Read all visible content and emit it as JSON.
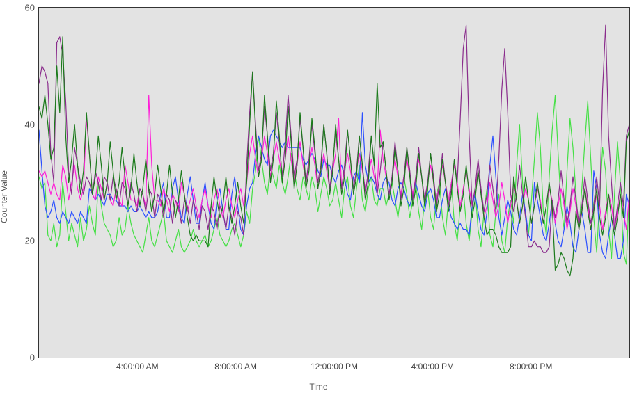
{
  "chart": {
    "type": "line",
    "xlabel": "Time",
    "ylabel": "Counter Value",
    "label_fontsize": 12,
    "background_color": "#e3e3e3",
    "page_background": "#ffffff",
    "border_color": "#333333",
    "grid_color": "#333333",
    "line_width": 1.2,
    "ylim": [
      0,
      60
    ],
    "yticks": [
      0,
      20,
      40,
      60
    ],
    "ytick_labels": [
      "0",
      "20",
      "40",
      "60"
    ],
    "xrange_hours": 24,
    "xtick_positions_hours": [
      4,
      8,
      12,
      16,
      20
    ],
    "xtick_labels": [
      "4:00:00 AM",
      "8:00:00 AM",
      "12:00:00 PM",
      "4:00:00 PM",
      "8:00:00 PM"
    ],
    "series": [
      {
        "name": "series-green-bright",
        "color": "#44e044",
        "values": [
          31,
          29,
          30,
          21,
          20,
          23,
          19,
          21,
          30,
          25,
          20,
          23,
          21,
          19,
          24,
          20,
          22,
          26,
          23,
          21,
          30,
          26,
          23,
          22,
          21,
          19,
          20,
          24,
          21,
          22,
          26,
          23,
          21,
          20,
          19,
          18,
          21,
          24,
          20,
          19,
          21,
          23,
          25,
          20,
          19,
          18,
          20,
          22,
          19,
          18,
          19,
          20,
          22,
          20,
          19,
          20,
          21,
          19,
          20,
          22,
          24,
          21,
          20,
          19,
          20,
          22,
          23,
          21,
          19,
          21,
          25,
          23,
          29,
          32,
          38,
          34,
          30,
          28,
          33,
          31,
          29,
          33,
          30,
          28,
          31,
          35,
          32,
          29,
          27,
          31,
          29,
          27,
          31,
          29,
          25,
          28,
          31,
          29,
          26,
          27,
          30,
          27,
          24,
          29,
          31,
          26,
          24,
          29,
          33,
          27,
          25,
          29,
          31,
          27,
          26,
          29,
          29,
          26,
          28,
          30,
          27,
          24,
          28,
          31,
          28,
          24,
          27,
          30,
          25,
          22,
          27,
          29,
          24,
          22,
          28,
          30,
          24,
          21,
          27,
          30,
          23,
          20,
          26,
          29,
          23,
          20,
          25,
          29,
          22,
          19,
          25,
          29,
          21,
          19,
          25,
          28,
          20,
          18,
          24,
          27,
          23,
          33,
          40,
          30,
          24,
          21,
          27,
          34,
          42,
          36,
          25,
          21,
          31,
          39,
          45,
          35,
          26,
          22,
          32,
          41,
          36,
          28,
          22,
          29,
          37,
          44,
          34,
          24,
          18,
          27,
          36,
          32,
          22,
          17,
          28,
          37,
          30,
          18,
          16,
          29
        ]
      },
      {
        "name": "series-blue",
        "color": "#2b50ff",
        "values": [
          39,
          32,
          26,
          24,
          25,
          27,
          24,
          23,
          25,
          24,
          23,
          25,
          24,
          23,
          25,
          24,
          23,
          29,
          28,
          27,
          28,
          27,
          26,
          28,
          28,
          27,
          27,
          26,
          26,
          26,
          25,
          26,
          25,
          25,
          26,
          25,
          24,
          25,
          24,
          24,
          25,
          28,
          30,
          24,
          24,
          29,
          31,
          27,
          24,
          23,
          28,
          31,
          27,
          23,
          23,
          27,
          30,
          26,
          23,
          22,
          27,
          29,
          25,
          22,
          22,
          28,
          31,
          26,
          22,
          21,
          26,
          29,
          30,
          35,
          38,
          36,
          34,
          33,
          38,
          39,
          38,
          37,
          36,
          37,
          36,
          36,
          36,
          36,
          36,
          34,
          33,
          34,
          35,
          34,
          32,
          31,
          34,
          33,
          33,
          31,
          30,
          32,
          33,
          31,
          28,
          27,
          31,
          32,
          30,
          42,
          33,
          30,
          31,
          30,
          28,
          27,
          30,
          31,
          30,
          27,
          26,
          29,
          30,
          29,
          27,
          26,
          28,
          30,
          28,
          26,
          25,
          28,
          29,
          27,
          24,
          24,
          27,
          29,
          26,
          24,
          23,
          22,
          23,
          22,
          22,
          21,
          26,
          28,
          25,
          22,
          21,
          25,
          33,
          38,
          31,
          24,
          21,
          24,
          27,
          25,
          22,
          21,
          24,
          28,
          25,
          21,
          20,
          30,
          27,
          24,
          21,
          20,
          23,
          27,
          23,
          20,
          19,
          22,
          26,
          23,
          19,
          18,
          22,
          25,
          22,
          18,
          18,
          32,
          29,
          21,
          18,
          17,
          21,
          24,
          21,
          17,
          17,
          20,
          28,
          26
        ]
      },
      {
        "name": "series-magenta",
        "color": "#ff1ed8",
        "values": [
          32,
          31,
          32,
          30,
          28,
          30,
          28,
          27,
          33,
          31,
          27,
          30,
          33,
          29,
          27,
          29,
          41,
          35,
          28,
          27,
          31,
          29,
          27,
          30,
          27,
          26,
          29,
          27,
          26,
          33,
          30,
          27,
          27,
          26,
          29,
          28,
          26,
          45,
          33,
          27,
          27,
          26,
          29,
          27,
          25,
          28,
          27,
          25,
          30,
          28,
          25,
          27,
          29,
          26,
          24,
          27,
          29,
          26,
          24,
          27,
          29,
          26,
          24,
          27,
          29,
          26,
          24,
          27,
          29,
          26,
          30,
          35,
          38,
          34,
          31,
          34,
          38,
          35,
          31,
          34,
          37,
          34,
          31,
          34,
          38,
          34,
          30,
          33,
          37,
          33,
          30,
          33,
          36,
          33,
          29,
          32,
          35,
          32,
          29,
          32,
          35,
          41,
          29,
          32,
          35,
          32,
          29,
          32,
          35,
          32,
          29,
          31,
          34,
          31,
          29,
          39,
          34,
          31,
          28,
          31,
          34,
          31,
          28,
          31,
          34,
          31,
          28,
          31,
          34,
          31,
          27,
          30,
          33,
          30,
          27,
          30,
          33,
          30,
          27,
          30,
          33,
          30,
          26,
          29,
          32,
          29,
          26,
          29,
          32,
          29,
          24,
          26,
          30,
          27,
          24,
          26,
          30,
          27,
          23,
          26,
          30,
          27,
          23,
          26,
          29,
          27,
          23,
          26,
          29,
          27,
          23,
          26,
          29,
          27,
          23,
          26,
          29,
          26,
          22,
          25,
          29,
          26,
          22,
          25,
          29,
          26,
          22,
          25,
          28,
          26,
          22,
          25,
          28,
          26,
          22,
          25,
          28,
          25,
          22,
          28
        ]
      },
      {
        "name": "series-purple",
        "color": "#8a2c8c",
        "values": [
          47,
          50,
          49,
          47,
          35,
          30,
          54,
          55,
          52,
          44,
          32,
          28,
          36,
          33,
          30,
          28,
          31,
          30,
          28,
          32,
          30,
          27,
          31,
          30,
          27,
          31,
          29,
          26,
          30,
          29,
          26,
          30,
          28,
          25,
          29,
          28,
          25,
          29,
          28,
          24,
          28,
          27,
          24,
          28,
          27,
          23,
          27,
          26,
          23,
          27,
          26,
          23,
          27,
          25,
          22,
          26,
          25,
          22,
          26,
          25,
          22,
          26,
          25,
          22,
          26,
          24,
          21,
          25,
          24,
          21,
          33,
          42,
          49,
          40,
          32,
          35,
          43,
          38,
          32,
          35,
          42,
          37,
          31,
          37,
          45,
          38,
          31,
          34,
          41,
          36,
          30,
          34,
          40,
          35,
          30,
          33,
          40,
          35,
          29,
          33,
          39,
          34,
          29,
          33,
          39,
          34,
          29,
          32,
          38,
          33,
          28,
          32,
          38,
          33,
          28,
          32,
          37,
          32,
          28,
          31,
          37,
          32,
          27,
          31,
          36,
          32,
          27,
          31,
          36,
          31,
          27,
          30,
          35,
          31,
          26,
          30,
          35,
          30,
          26,
          29,
          34,
          30,
          41,
          53,
          57,
          38,
          26,
          29,
          34,
          29,
          25,
          28,
          33,
          29,
          25,
          34,
          46,
          53,
          42,
          28,
          25,
          28,
          33,
          28,
          24,
          19,
          19,
          20,
          19,
          19,
          18,
          18,
          19,
          27,
          24,
          27,
          32,
          27,
          23,
          26,
          31,
          27,
          23,
          26,
          31,
          27,
          23,
          26,
          31,
          26,
          46,
          57,
          38,
          30,
          22,
          26,
          30,
          26,
          38,
          40
        ]
      },
      {
        "name": "series-green-dark",
        "color": "#1b7a1b",
        "values": [
          43,
          41,
          45,
          40,
          34,
          36,
          50,
          42,
          55,
          38,
          30,
          34,
          40,
          33,
          28,
          32,
          42,
          35,
          28,
          31,
          38,
          33,
          27,
          30,
          37,
          32,
          27,
          30,
          36,
          31,
          26,
          29,
          35,
          30,
          26,
          29,
          34,
          29,
          25,
          28,
          33,
          29,
          25,
          28,
          33,
          28,
          24,
          27,
          32,
          28,
          24,
          21,
          20,
          21,
          20,
          20,
          20,
          19,
          26,
          31,
          27,
          24,
          26,
          31,
          26,
          23,
          26,
          30,
          26,
          23,
          30,
          40,
          49,
          39,
          31,
          34,
          45,
          38,
          30,
          34,
          44,
          38,
          30,
          34,
          43,
          37,
          29,
          33,
          42,
          36,
          29,
          32,
          41,
          36,
          29,
          32,
          40,
          35,
          28,
          32,
          40,
          34,
          28,
          31,
          39,
          34,
          28,
          31,
          38,
          33,
          27,
          30,
          38,
          33,
          47,
          36,
          37,
          32,
          27,
          30,
          36,
          32,
          26,
          29,
          36,
          31,
          26,
          29,
          35,
          31,
          26,
          29,
          35,
          30,
          25,
          28,
          34,
          30,
          25,
          28,
          34,
          29,
          25,
          28,
          33,
          28,
          24,
          27,
          32,
          28,
          24,
          21,
          22,
          22,
          21,
          19,
          18,
          18,
          18,
          19,
          31,
          27,
          23,
          26,
          31,
          27,
          23,
          26,
          30,
          26,
          23,
          26,
          30,
          26,
          15,
          16,
          18,
          17,
          15,
          14,
          17,
          25,
          22,
          25,
          29,
          25,
          22,
          25,
          29,
          24,
          21,
          24,
          28,
          24,
          21,
          24,
          28,
          24,
          37,
          39
        ]
      }
    ]
  }
}
